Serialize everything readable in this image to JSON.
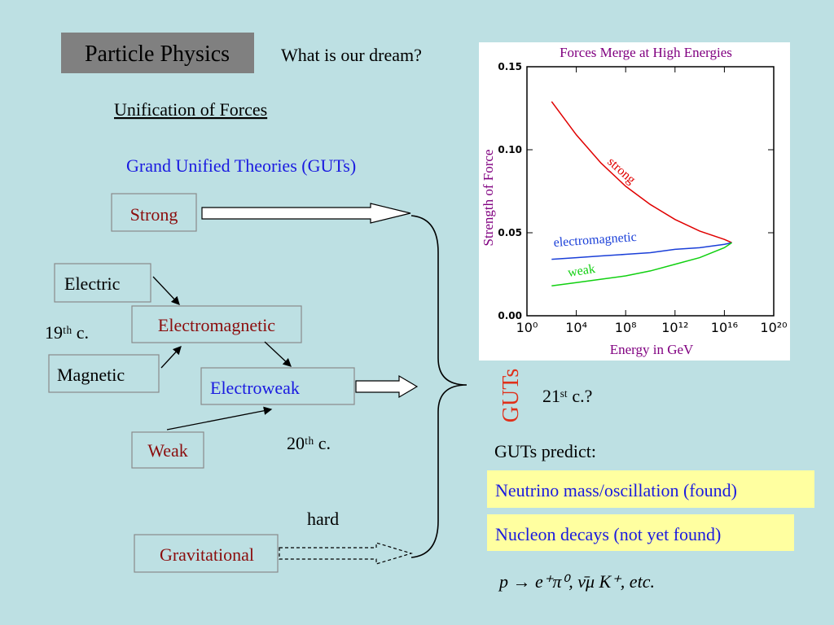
{
  "slide": {
    "title": "Particle Physics",
    "question": "What is our dream?",
    "heading": "Unification of Forces",
    "subheading": "Grand Unified Theories (GUTs)",
    "nodes": [
      "Strong",
      "Electric",
      "Electromagnetic",
      "Magnetic",
      "Electroweak",
      "Weak",
      "Gravitational"
    ],
    "era_19": "19ᵗʰ c.",
    "era_20": "20ᵗʰ c.",
    "hard": "hard",
    "guts": "GUTs",
    "era_21": "21ˢᵗ c.?",
    "predict_heading": "GUTs predict:",
    "predictions": [
      "Neutrino mass/oscillation (found)",
      "Nucleon decays (not yet found)"
    ],
    "formula": "p → e⁺π⁰, ν̄μ K⁺, etc."
  },
  "chart_data": {
    "type": "line",
    "title": "Forces Merge at High Energies",
    "xlabel": "Energy in GeV",
    "ylabel": "Strength of Force",
    "xscale": "log",
    "xlim": [
      1,
      1e+20
    ],
    "xticks": [
      {
        "value": 1,
        "label": "10⁰"
      },
      {
        "value": 10000.0,
        "label": "10⁴"
      },
      {
        "value": 100000000.0,
        "label": "10⁸"
      },
      {
        "value": 1000000000000.0,
        "label": "10¹²"
      },
      {
        "value": 1e+16,
        "label": "10¹⁶"
      },
      {
        "value": 1e+20,
        "label": "10²⁰"
      }
    ],
    "ylim": [
      0,
      0.15
    ],
    "yticks": [
      {
        "value": 0,
        "label": "0.00"
      },
      {
        "value": 0.05,
        "label": "0.05"
      },
      {
        "value": 0.1,
        "label": "0.10"
      },
      {
        "value": 0.15,
        "label": "0.15"
      }
    ],
    "x": [
      100.0,
      10000.0,
      1000000.0,
      100000000.0,
      10000000000.0,
      1000000000000.0,
      100000000000000.0,
      1e+16,
      4e+16
    ],
    "series": [
      {
        "name": "strong",
        "color": "#e00000",
        "values": [
          0.129,
          0.109,
          0.092,
          0.078,
          0.067,
          0.058,
          0.051,
          0.046,
          0.044
        ]
      },
      {
        "name": "electromagnetic",
        "color": "#1a3fd8",
        "values": [
          0.034,
          0.035,
          0.036,
          0.037,
          0.038,
          0.04,
          0.041,
          0.043,
          0.044
        ]
      },
      {
        "name": "weak",
        "color": "#10d010",
        "values": [
          0.018,
          0.02,
          0.022,
          0.024,
          0.027,
          0.031,
          0.035,
          0.041,
          0.044
        ]
      }
    ]
  }
}
